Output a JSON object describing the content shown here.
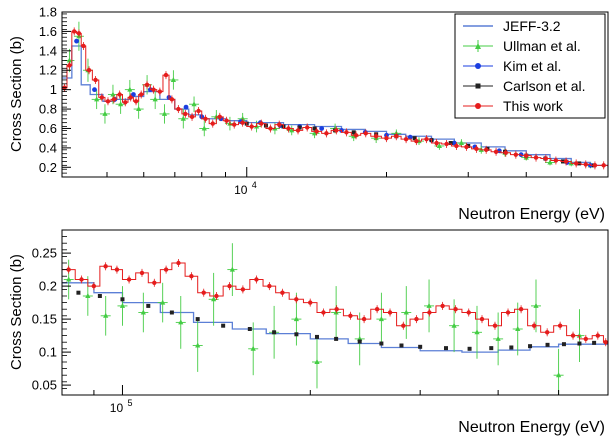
{
  "chart_data": [
    {
      "type": "line",
      "ylabel": "Cross Section (b)",
      "xlabel": "Neutron Energy (eV)",
      "x_scale": "log",
      "xlim": [
        4000,
        60000
      ],
      "ylim": [
        0.1,
        1.8
      ],
      "yticks": [
        0.2,
        0.4,
        0.6,
        0.8,
        1,
        1.2,
        1.4,
        1.6,
        1.8
      ],
      "ytick_labels": [
        "0.2",
        "0.4",
        "0.6",
        "0.8",
        "1",
        "1.2",
        "1.4",
        "1.6",
        "1.8"
      ],
      "xtick_labels": [
        {
          "x": 10000,
          "label": "10",
          "exp": "4"
        }
      ],
      "legend": {
        "position": "top-right",
        "entries": [
          {
            "name": "JEFF-3.2",
            "color": "#5b7fd6"
          },
          {
            "name": "Ullman et al.",
            "color": "#44cc44"
          },
          {
            "name": "Kim et al.",
            "color": "#1a3ee0"
          },
          {
            "name": "Carlson et al.",
            "color": "#222222"
          },
          {
            "name": "This work",
            "color": "#e51c1c"
          }
        ]
      },
      "series": [
        {
          "name": "JEFF-3.2",
          "style": "step",
          "color": "#5b7fd6",
          "x": [
            4000,
            4200,
            4400,
            4600,
            4900,
            5200,
            5600,
            6000,
            6500,
            7000,
            7500,
            8000,
            9000,
            10000,
            12000,
            14000,
            16000,
            18000,
            20000,
            22000,
            25000,
            28000,
            32000,
            36000,
            40000,
            45000,
            50000,
            55000,
            60000
          ],
          "y": [
            1.12,
            1.45,
            1.05,
            0.95,
            0.88,
            0.9,
            0.93,
            0.98,
            0.9,
            0.8,
            0.74,
            0.7,
            0.68,
            0.66,
            0.64,
            0.62,
            0.59,
            0.57,
            0.54,
            0.52,
            0.49,
            0.45,
            0.41,
            0.37,
            0.33,
            0.29,
            0.25,
            0.22,
            0.2
          ]
        },
        {
          "name": "Ullman et al.",
          "style": "points-error",
          "color": "#44cc44",
          "x": [
            4150,
            4350,
            4550,
            4750,
            4950,
            5150,
            5350,
            5600,
            5850,
            6100,
            6350,
            6650,
            6950,
            7300,
            7700,
            8100,
            8600,
            9200,
            9800,
            10500,
            11500,
            12500,
            14000,
            15500,
            17000,
            19000,
            21000,
            23500,
            26000,
            29000,
            32000,
            36000,
            40000,
            45000,
            50000,
            55000
          ],
          "y": [
            1.3,
            1.55,
            1.2,
            0.9,
            0.75,
            0.95,
            0.85,
            1.0,
            0.8,
            1.05,
            0.9,
            0.75,
            1.1,
            0.7,
            0.85,
            0.6,
            0.72,
            0.65,
            0.7,
            0.62,
            0.6,
            0.58,
            0.55,
            0.6,
            0.52,
            0.5,
            0.55,
            0.47,
            0.42,
            0.45,
            0.38,
            0.35,
            0.3,
            0.25,
            0.24,
            0.22
          ],
          "err": [
            0.12,
            0.15,
            0.12,
            0.1,
            0.1,
            0.1,
            0.1,
            0.1,
            0.1,
            0.1,
            0.1,
            0.1,
            0.1,
            0.1,
            0.08,
            0.08,
            0.07,
            0.07,
            0.06,
            0.06,
            0.06,
            0.05,
            0.05,
            0.05,
            0.05,
            0.05,
            0.04,
            0.04,
            0.04,
            0.04,
            0.04,
            0.04,
            0.03,
            0.03,
            0.03,
            0.03
          ]
        },
        {
          "name": "Kim et al.",
          "style": "points",
          "color": "#1a3ee0",
          "x": [
            4300,
            4700,
            5200,
            5700,
            6200,
            6800,
            7400,
            8000,
            8800,
            9700,
            10700,
            11800,
            13000,
            14500,
            16000,
            18000,
            20000,
            22500,
            25000,
            28000,
            31000,
            35000,
            39000,
            44000,
            49000,
            55000
          ],
          "y": [
            1.5,
            1.0,
            0.9,
            0.95,
            1.0,
            0.92,
            0.82,
            0.72,
            0.7,
            0.67,
            0.66,
            0.63,
            0.62,
            0.6,
            0.58,
            0.56,
            0.53,
            0.51,
            0.48,
            0.45,
            0.41,
            0.37,
            0.33,
            0.29,
            0.25,
            0.22
          ]
        },
        {
          "name": "Carlson et al.",
          "style": "points",
          "color": "#222222",
          "x": [
            10000,
            11000,
            12000,
            13000,
            14000,
            15500,
            17000,
            19000,
            21000,
            23000,
            25000,
            27500,
            30000,
            33000,
            36000,
            40000,
            44000,
            48000,
            52000,
            56000
          ],
          "y": [
            0.65,
            0.63,
            0.62,
            0.61,
            0.6,
            0.58,
            0.56,
            0.54,
            0.52,
            0.5,
            0.48,
            0.45,
            0.42,
            0.39,
            0.36,
            0.32,
            0.29,
            0.26,
            0.24,
            0.22
          ]
        },
        {
          "name": "This work",
          "style": "step-points",
          "color": "#e51c1c",
          "x": [
            4000,
            4100,
            4200,
            4300,
            4400,
            4500,
            4650,
            4800,
            4950,
            5100,
            5250,
            5400,
            5550,
            5700,
            5850,
            6000,
            6200,
            6400,
            6600,
            6800,
            7000,
            7250,
            7500,
            7750,
            8000,
            8300,
            8600,
            8900,
            9200,
            9600,
            10000,
            10500,
            11000,
            11500,
            12000,
            12600,
            13200,
            13800,
            14500,
            15200,
            16000,
            16800,
            17600,
            18500,
            19500,
            20500,
            21500,
            22600,
            23800,
            25000,
            26300,
            27600,
            29000,
            30500,
            32000,
            33600,
            35300,
            37000,
            39000,
            41000,
            43000,
            45200,
            47500,
            50000,
            52500,
            55000,
            57500
          ],
          "y": [
            1.02,
            1.25,
            1.6,
            1.58,
            1.45,
            1.2,
            1.1,
            0.92,
            0.88,
            0.9,
            0.95,
            0.87,
            0.92,
            0.88,
            0.95,
            1.05,
            1.0,
            0.98,
            1.15,
            0.9,
            0.8,
            0.75,
            0.72,
            0.78,
            0.7,
            0.65,
            0.72,
            0.68,
            0.64,
            0.66,
            0.62,
            0.65,
            0.6,
            0.64,
            0.6,
            0.58,
            0.61,
            0.57,
            0.55,
            0.58,
            0.56,
            0.53,
            0.55,
            0.52,
            0.5,
            0.52,
            0.49,
            0.47,
            0.49,
            0.45,
            0.44,
            0.42,
            0.41,
            0.39,
            0.38,
            0.36,
            0.35,
            0.33,
            0.32,
            0.3,
            0.29,
            0.27,
            0.26,
            0.24,
            0.23,
            0.22,
            0.22
          ]
        }
      ]
    },
    {
      "type": "line",
      "ylabel": "Cross Section (b)",
      "xlabel": "Neutron Energy (eV)",
      "x_scale": "log",
      "xlim": [
        80000,
        600000
      ],
      "ylim": [
        0.035,
        0.285
      ],
      "yticks": [
        0.05,
        0.1,
        0.15,
        0.2,
        0.25
      ],
      "ytick_labels": [
        "0.05",
        "0.1",
        "0.15",
        "0.2",
        "0.25"
      ],
      "xtick_labels": [
        {
          "x": 100000,
          "label": "10",
          "exp": "5"
        }
      ],
      "series": [
        {
          "name": "JEFF-3.2",
          "style": "step",
          "color": "#5b7fd6",
          "x": [
            80000,
            90000,
            100000,
            115000,
            130000,
            150000,
            170000,
            200000,
            230000,
            260000,
            300000,
            350000,
            400000,
            450000,
            500000,
            600000
          ],
          "y": [
            0.205,
            0.19,
            0.175,
            0.16,
            0.145,
            0.135,
            0.128,
            0.12,
            0.113,
            0.107,
            0.102,
            0.1,
            0.103,
            0.108,
            0.112,
            0.115
          ]
        },
        {
          "name": "Ullman et al.",
          "style": "points-error",
          "color": "#44cc44",
          "x": [
            82000,
            88000,
            94000,
            100000,
            108000,
            116000,
            124000,
            132000,
            140000,
            150000,
            162000,
            175000,
            190000,
            205000,
            220000,
            240000,
            260000,
            285000,
            310000,
            340000,
            370000,
            400000,
            430000,
            460000,
            500000,
            540000
          ],
          "y": [
            0.21,
            0.185,
            0.155,
            0.17,
            0.16,
            0.175,
            0.145,
            0.11,
            0.18,
            0.225,
            0.105,
            0.13,
            0.15,
            0.085,
            0.16,
            0.12,
            0.15,
            0.16,
            0.17,
            0.14,
            0.13,
            0.12,
            0.135,
            0.17,
            0.065,
            0.125
          ],
          "err": [
            0.03,
            0.03,
            0.03,
            0.03,
            0.03,
            0.03,
            0.04,
            0.04,
            0.04,
            0.04,
            0.04,
            0.04,
            0.04,
            0.04,
            0.04,
            0.04,
            0.04,
            0.04,
            0.04,
            0.04,
            0.04,
            0.04,
            0.04,
            0.04,
            0.04,
            0.04
          ]
        },
        {
          "name": "Carlson et al.",
          "style": "points",
          "color": "#222222",
          "x": [
            85000,
            92000,
            100000,
            110000,
            120000,
            132000,
            145000,
            160000,
            175000,
            190000,
            205000,
            220000,
            240000,
            260000,
            280000,
            300000,
            330000,
            360000,
            390000,
            420000,
            450000,
            480000,
            510000,
            540000,
            570000
          ],
          "y": [
            0.19,
            0.185,
            0.18,
            0.17,
            0.16,
            0.15,
            0.14,
            0.135,
            0.13,
            0.127,
            0.123,
            0.12,
            0.116,
            0.113,
            0.11,
            0.108,
            0.106,
            0.105,
            0.106,
            0.107,
            0.109,
            0.111,
            0.112,
            0.113,
            0.114
          ]
        },
        {
          "name": "This work",
          "style": "step-points",
          "color": "#e51c1c",
          "x": [
            80000,
            84000,
            88000,
            92000,
            96000,
            100000,
            105000,
            110000,
            115000,
            120000,
            126000,
            132000,
            138000,
            145000,
            152000,
            160000,
            168000,
            176000,
            185000,
            195000,
            205000,
            215000,
            226000,
            238000,
            250000,
            262000,
            275000,
            289000,
            303000,
            318000,
            334000,
            350000,
            368000,
            386000,
            405000,
            425000,
            446000,
            468000,
            491000,
            515000,
            540000,
            566000,
            590000
          ],
          "y": [
            0.225,
            0.21,
            0.2,
            0.23,
            0.225,
            0.21,
            0.22,
            0.205,
            0.225,
            0.235,
            0.215,
            0.19,
            0.185,
            0.2,
            0.195,
            0.21,
            0.2,
            0.19,
            0.18,
            0.175,
            0.16,
            0.165,
            0.155,
            0.15,
            0.165,
            0.16,
            0.14,
            0.15,
            0.16,
            0.17,
            0.165,
            0.16,
            0.15,
            0.14,
            0.16,
            0.165,
            0.14,
            0.13,
            0.14,
            0.125,
            0.12,
            0.125,
            0.115
          ]
        }
      ]
    }
  ]
}
